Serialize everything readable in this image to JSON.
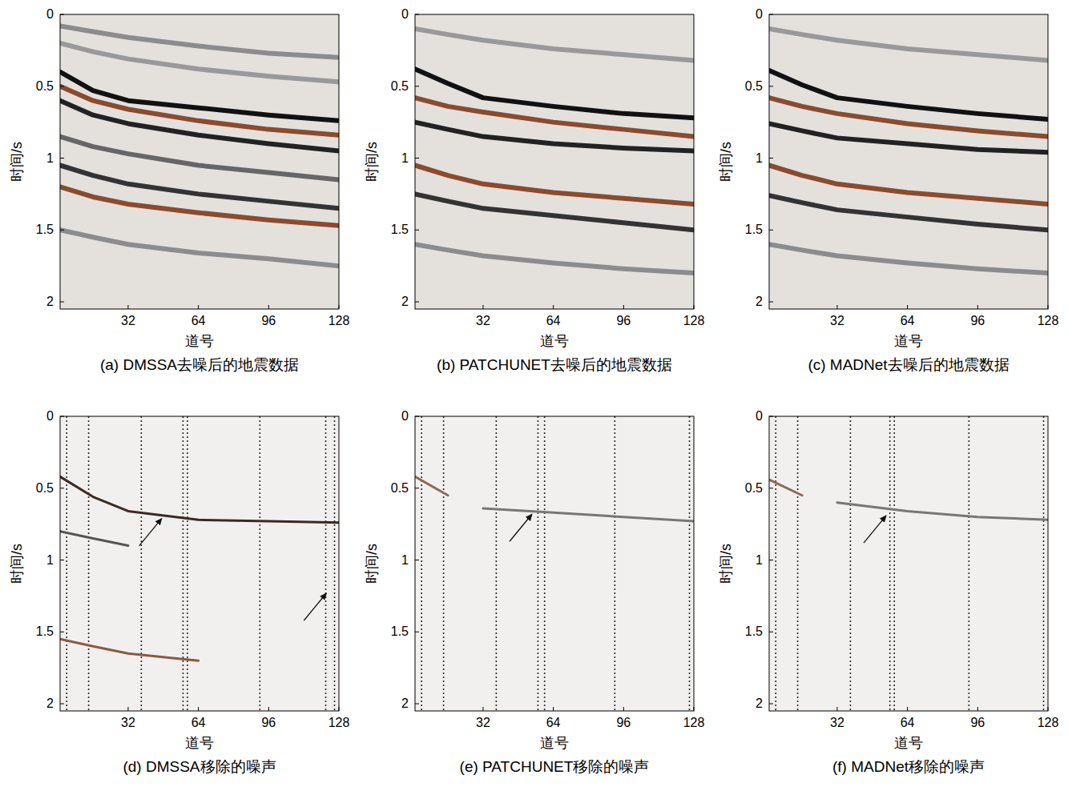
{
  "chart_data": [
    {
      "type": "line",
      "title": "(a) DMSSA去噪后的地震数据",
      "xlabel": "道号",
      "ylabel": "时间/s",
      "xlim": [
        1,
        128
      ],
      "ylim": [
        0,
        2.05
      ],
      "xticks": [
        32,
        64,
        96,
        128
      ],
      "yticks": [
        0,
        0.5,
        1,
        1.5,
        2
      ],
      "x": [
        1,
        16,
        32,
        64,
        96,
        128
      ],
      "series": [
        {
          "color": "#8c8c8c",
          "values": [
            0.08,
            0.12,
            0.16,
            0.22,
            0.27,
            0.3
          ]
        },
        {
          "color": "#999999",
          "values": [
            0.2,
            0.26,
            0.31,
            0.38,
            0.43,
            0.47
          ]
        },
        {
          "color": "#111111",
          "values": [
            0.4,
            0.53,
            0.6,
            0.65,
            0.7,
            0.74
          ]
        },
        {
          "color": "#8a4b2e",
          "values": [
            0.5,
            0.6,
            0.66,
            0.74,
            0.8,
            0.84
          ]
        },
        {
          "color": "#222222",
          "values": [
            0.6,
            0.7,
            0.76,
            0.84,
            0.9,
            0.95
          ]
        },
        {
          "color": "#666666",
          "values": [
            0.85,
            0.92,
            0.97,
            1.05,
            1.1,
            1.15
          ]
        },
        {
          "color": "#333333",
          "values": [
            1.05,
            1.12,
            1.18,
            1.25,
            1.3,
            1.35
          ]
        },
        {
          "color": "#8a4b2e",
          "values": [
            1.2,
            1.27,
            1.32,
            1.38,
            1.43,
            1.47
          ]
        },
        {
          "color": "#8c8c8c",
          "values": [
            1.5,
            1.55,
            1.6,
            1.66,
            1.7,
            1.75
          ]
        }
      ]
    },
    {
      "type": "line",
      "title": "(b) PATCHUNET去噪后的地震数据",
      "xlabel": "道号",
      "ylabel": "时间/s",
      "xlim": [
        1,
        128
      ],
      "ylim": [
        0,
        2.05
      ],
      "xticks": [
        32,
        64,
        96,
        128
      ],
      "yticks": [
        0,
        0.5,
        1,
        1.5,
        2
      ],
      "x": [
        1,
        16,
        32,
        64,
        96,
        128
      ],
      "series": [
        {
          "color": "#999999",
          "values": [
            0.1,
            0.14,
            0.18,
            0.24,
            0.28,
            0.32
          ]
        },
        {
          "color": "#111111",
          "values": [
            0.38,
            0.48,
            0.58,
            0.64,
            0.69,
            0.72
          ]
        },
        {
          "color": "#8a4b2e",
          "values": [
            0.58,
            0.64,
            0.68,
            0.75,
            0.8,
            0.85
          ]
        },
        {
          "color": "#222222",
          "values": [
            0.75,
            0.8,
            0.85,
            0.9,
            0.93,
            0.95
          ]
        },
        {
          "color": "#8a4b2e",
          "values": [
            1.05,
            1.12,
            1.18,
            1.24,
            1.28,
            1.32
          ]
        },
        {
          "color": "#333333",
          "values": [
            1.25,
            1.3,
            1.35,
            1.4,
            1.45,
            1.5
          ]
        },
        {
          "color": "#8c8c8c",
          "values": [
            1.6,
            1.64,
            1.68,
            1.73,
            1.77,
            1.8
          ]
        }
      ]
    },
    {
      "type": "line",
      "title": "(c) MADNet去噪后的地震数据",
      "xlabel": "道号",
      "ylabel": "时间/s",
      "xlim": [
        1,
        128
      ],
      "ylim": [
        0,
        2.05
      ],
      "xticks": [
        32,
        64,
        96,
        128
      ],
      "yticks": [
        0,
        0.5,
        1,
        1.5,
        2
      ],
      "x": [
        1,
        16,
        32,
        64,
        96,
        128
      ],
      "series": [
        {
          "color": "#999999",
          "values": [
            0.1,
            0.14,
            0.18,
            0.24,
            0.28,
            0.32
          ]
        },
        {
          "color": "#111111",
          "values": [
            0.39,
            0.49,
            0.58,
            0.64,
            0.69,
            0.73
          ]
        },
        {
          "color": "#8a4b2e",
          "values": [
            0.58,
            0.64,
            0.69,
            0.76,
            0.81,
            0.85
          ]
        },
        {
          "color": "#222222",
          "values": [
            0.76,
            0.81,
            0.86,
            0.9,
            0.94,
            0.96
          ]
        },
        {
          "color": "#8a4b2e",
          "values": [
            1.05,
            1.12,
            1.18,
            1.24,
            1.28,
            1.32
          ]
        },
        {
          "color": "#333333",
          "values": [
            1.26,
            1.31,
            1.36,
            1.41,
            1.46,
            1.5
          ]
        },
        {
          "color": "#8c8c8c",
          "values": [
            1.6,
            1.64,
            1.68,
            1.73,
            1.77,
            1.8
          ]
        }
      ]
    },
    {
      "type": "line",
      "title": "(d) DMSSA移除的噪声",
      "xlabel": "道号",
      "ylabel": "时间/s",
      "xlim": [
        1,
        128
      ],
      "ylim": [
        0,
        2.05
      ],
      "xticks": [
        32,
        64,
        96,
        128
      ],
      "yticks": [
        0,
        0.5,
        1,
        1.5,
        2
      ],
      "x": [
        1,
        16,
        32,
        64,
        96,
        128
      ],
      "trace_lines": [
        4,
        14,
        38,
        57,
        59,
        92,
        122,
        126
      ],
      "arrows": [
        {
          "x": 48,
          "y": 0.7
        },
        {
          "x": 123,
          "y": 1.22
        }
      ],
      "series": [
        {
          "color": "#3a2a22",
          "values": [
            0.42,
            0.56,
            0.66,
            0.72,
            0.73,
            0.74
          ]
        },
        {
          "color": "#555555",
          "values": [
            0.8,
            0.85,
            0.9,
            null,
            null,
            null
          ]
        },
        {
          "color": "#8a5a44",
          "values": [
            1.55,
            1.6,
            1.65,
            1.7,
            null,
            null
          ]
        }
      ]
    },
    {
      "type": "line",
      "title": "(e) PATCHUNET移除的噪声",
      "xlabel": "道号",
      "ylabel": "时间/s",
      "xlim": [
        1,
        128
      ],
      "ylim": [
        0,
        2.05
      ],
      "xticks": [
        32,
        64,
        96,
        128
      ],
      "yticks": [
        0,
        0.5,
        1,
        1.5,
        2
      ],
      "x": [
        1,
        16,
        32,
        64,
        96,
        128
      ],
      "trace_lines": [
        4,
        14,
        38,
        57,
        60,
        92,
        126
      ],
      "arrows": [
        {
          "x": 55,
          "y": 0.67
        }
      ],
      "series": [
        {
          "color": "#8a6a5a",
          "values": [
            0.42,
            0.55,
            null,
            null,
            null,
            null
          ]
        },
        {
          "color": "#777777",
          "values": [
            null,
            null,
            0.64,
            0.67,
            0.7,
            0.73
          ]
        }
      ]
    },
    {
      "type": "line",
      "title": "(f) MADNet移除的噪声",
      "xlabel": "道号",
      "ylabel": "时间/s",
      "xlim": [
        1,
        128
      ],
      "ylim": [
        0,
        2.05
      ],
      "xticks": [
        32,
        64,
        96,
        128
      ],
      "yticks": [
        0,
        0.5,
        1,
        1.5,
        2
      ],
      "x": [
        1,
        16,
        32,
        64,
        96,
        128
      ],
      "trace_lines": [
        4,
        14,
        38,
        56,
        58,
        92,
        126
      ],
      "arrows": [
        {
          "x": 55,
          "y": 0.68
        }
      ],
      "series": [
        {
          "color": "#8a6a5a",
          "values": [
            0.44,
            0.55,
            null,
            null,
            null,
            null
          ]
        },
        {
          "color": "#777777",
          "values": [
            null,
            null,
            0.6,
            0.66,
            0.7,
            0.72
          ]
        }
      ]
    }
  ]
}
